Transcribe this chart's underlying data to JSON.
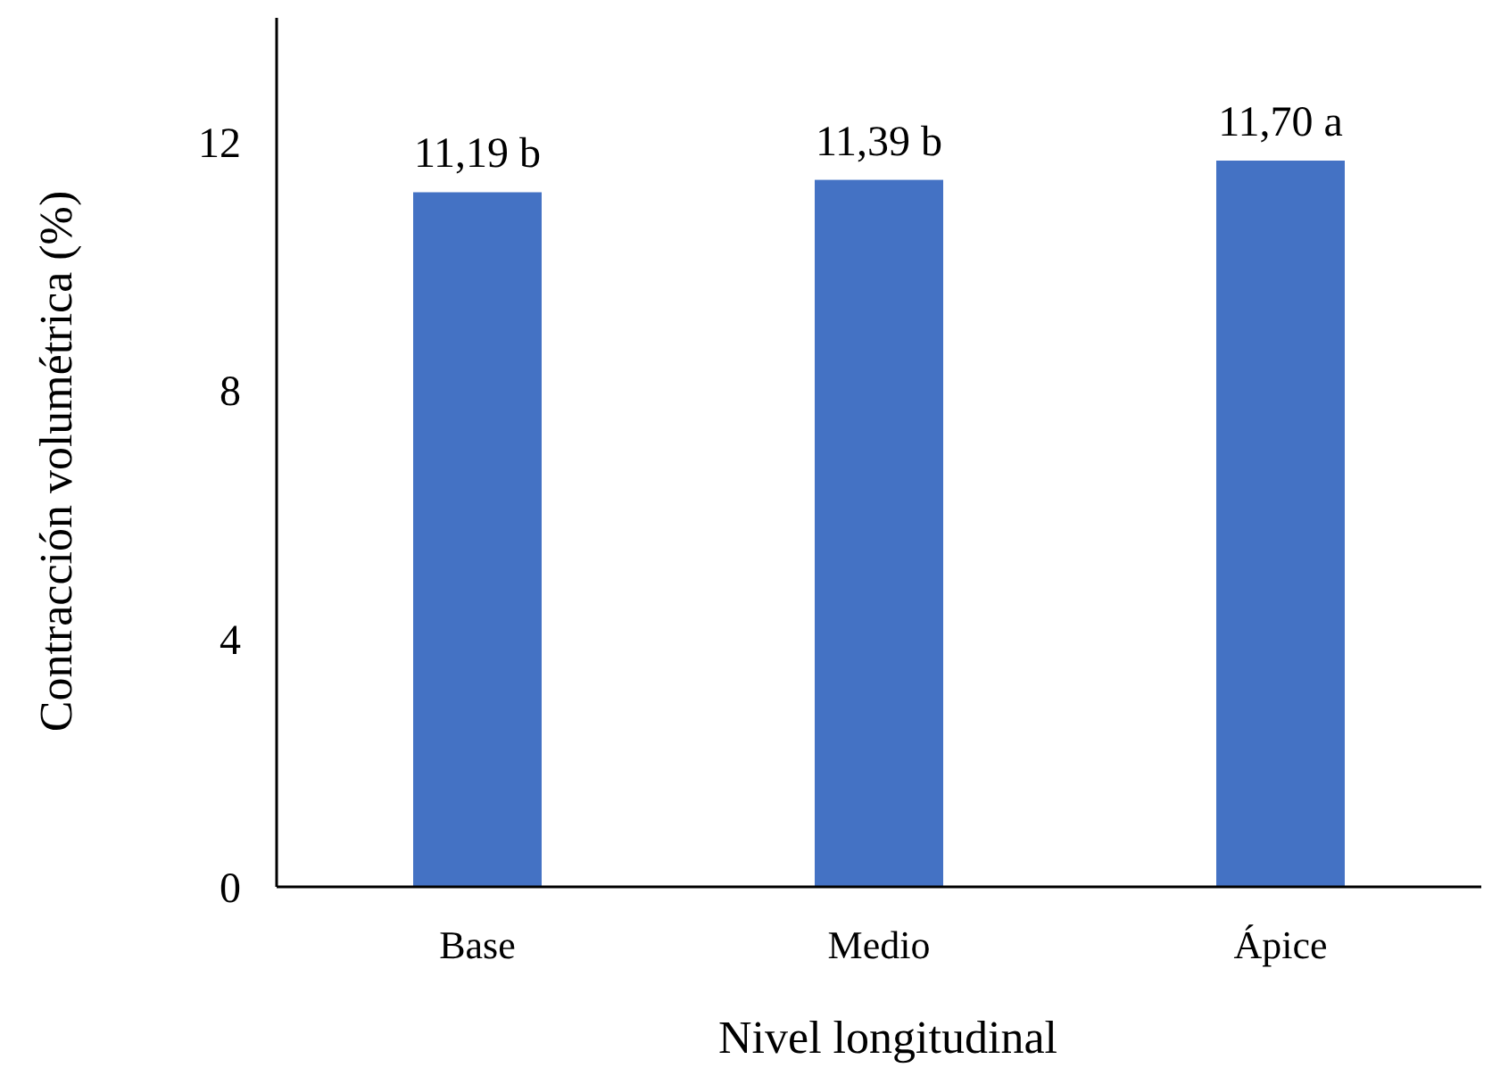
{
  "chart_data": {
    "type": "bar",
    "xlabel": "Nivel longitudinal",
    "ylabel": "Contracción volumétrica (%)",
    "categories": [
      "Base",
      "Medio",
      "Ápice"
    ],
    "values": [
      11.19,
      11.39,
      11.7
    ],
    "value_labels": [
      "11,19 b",
      "11,39 b",
      "11,70 a"
    ],
    "color": "#4472c4",
    "ylim": [
      0,
      14
    ],
    "yticks": [
      0,
      4,
      8,
      12
    ]
  }
}
